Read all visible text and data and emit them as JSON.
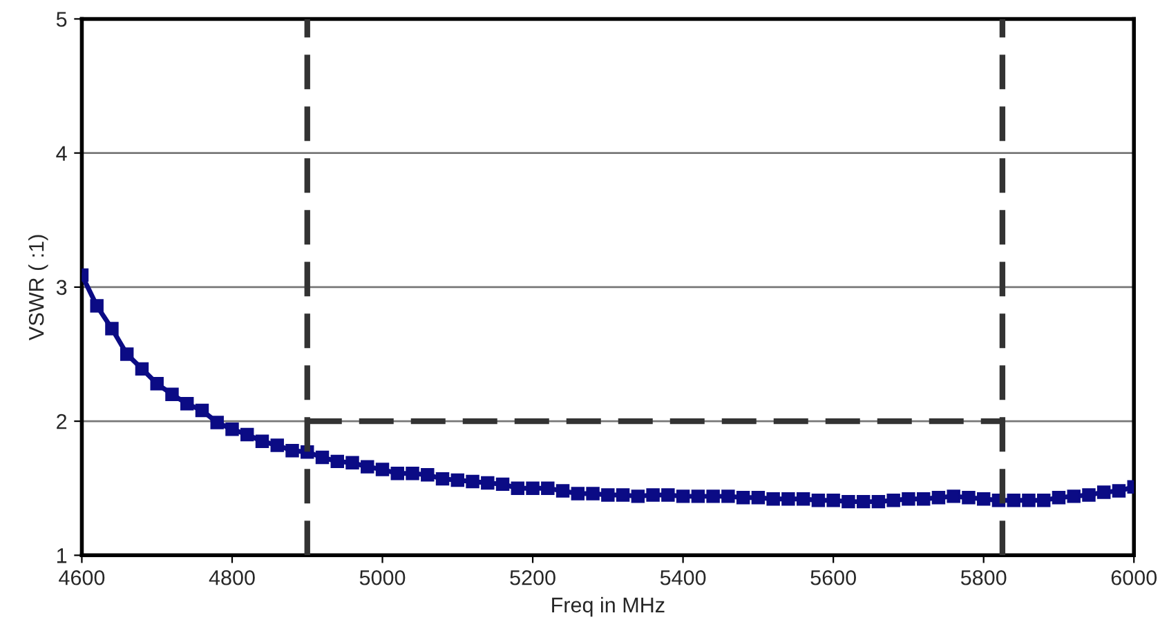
{
  "chart_data": {
    "type": "line",
    "xlabel": "Freq in MHz",
    "ylabel": "VSWR ( :1)",
    "xlim": [
      4600,
      6000
    ],
    "xticks": [
      4600,
      4800,
      5000,
      5200,
      5400,
      5600,
      5800,
      6000
    ],
    "ylim": [
      1,
      5
    ],
    "yticks": [
      1,
      2,
      3,
      4,
      5
    ],
    "grid": "y",
    "legend": false,
    "series": [
      {
        "color": "#0b0b85",
        "marker": "square",
        "line_style": "solid",
        "x": [
          4600,
          4620,
          4640,
          4660,
          4680,
          4700,
          4720,
          4740,
          4760,
          4780,
          4800,
          4820,
          4840,
          4860,
          4880,
          4900,
          4920,
          4940,
          4960,
          4980,
          5000,
          5020,
          5040,
          5060,
          5080,
          5100,
          5120,
          5140,
          5160,
          5180,
          5200,
          5220,
          5240,
          5260,
          5280,
          5300,
          5320,
          5340,
          5360,
          5380,
          5400,
          5420,
          5440,
          5460,
          5480,
          5500,
          5520,
          5540,
          5560,
          5580,
          5600,
          5620,
          5640,
          5660,
          5680,
          5700,
          5720,
          5740,
          5760,
          5780,
          5800,
          5820,
          5840,
          5860,
          5880,
          5900,
          5920,
          5940,
          5960,
          5980,
          6000
        ],
        "values": [
          3.09,
          2.86,
          2.69,
          2.5,
          2.39,
          2.28,
          2.2,
          2.13,
          2.08,
          1.99,
          1.94,
          1.9,
          1.85,
          1.82,
          1.78,
          1.77,
          1.73,
          1.7,
          1.69,
          1.66,
          1.64,
          1.61,
          1.61,
          1.6,
          1.57,
          1.56,
          1.55,
          1.54,
          1.53,
          1.5,
          1.5,
          1.5,
          1.48,
          1.46,
          1.46,
          1.45,
          1.45,
          1.44,
          1.45,
          1.45,
          1.44,
          1.44,
          1.44,
          1.44,
          1.43,
          1.43,
          1.42,
          1.42,
          1.42,
          1.41,
          1.41,
          1.4,
          1.4,
          1.4,
          1.41,
          1.42,
          1.42,
          1.43,
          1.44,
          1.43,
          1.42,
          1.41,
          1.41,
          1.41,
          1.41,
          1.43,
          1.44,
          1.45,
          1.47,
          1.48,
          1.51
        ]
      },
      {
        "color": "#333333",
        "marker": "none",
        "line_style": "dashed",
        "x": [
          4900,
          5825
        ],
        "values": [
          2,
          2
        ]
      }
    ],
    "ref_lines": [
      {
        "axis": "x",
        "value": 4900,
        "color": "#333333",
        "line_style": "dashed"
      },
      {
        "axis": "x",
        "value": 5825,
        "color": "#333333",
        "line_style": "dashed"
      }
    ]
  }
}
